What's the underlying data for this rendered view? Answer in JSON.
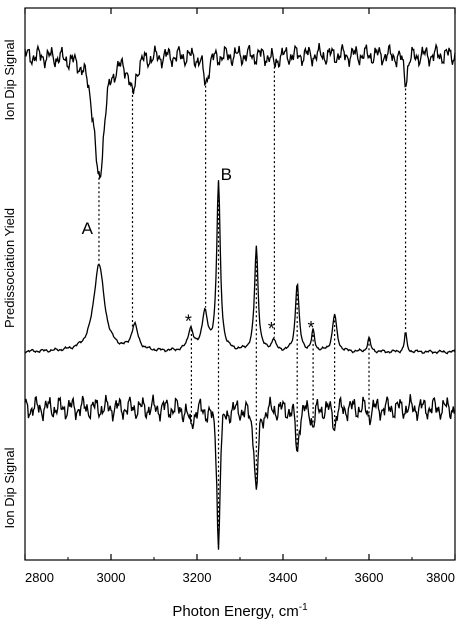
{
  "chart_data": {
    "type": "line",
    "xlabel": "Photon Energy, cm",
    "xlabel_superscript": "-1",
    "xlim": [
      2800,
      3800
    ],
    "xticks": [
      2800,
      3000,
      3200,
      3400,
      3600,
      3800
    ],
    "tick_labels": [
      "2800",
      "3000",
      "3200",
      "3400",
      "3600",
      "3800"
    ],
    "grid": false,
    "y_ticks_shown": false,
    "ylabels": [
      "Ion Dip Signal",
      "Predissociation Yield",
      "Ion Dip Signal"
    ],
    "series": [
      {
        "name": "Ion Dip Signal",
        "baseline": 0.0,
        "noise": 0.1,
        "peaks": [
          {
            "x": 2972,
            "h": -1.0,
            "w": 14
          },
          {
            "x": 3050,
            "h": -0.3,
            "w": 8
          },
          {
            "x": 3220,
            "h": -0.22,
            "w": 7
          },
          {
            "x": 3380,
            "h": -0.07,
            "w": 6
          },
          {
            "x": 3685,
            "h": -0.2,
            "w": 5
          }
        ]
      },
      {
        "name": "Predissociation Yield",
        "baseline": 0.0,
        "noise": 0.012,
        "peaks": [
          {
            "x": 2972,
            "h": 0.52,
            "w": 15
          },
          {
            "x": 3055,
            "h": 0.15,
            "w": 9
          },
          {
            "x": 3185,
            "h": 0.13,
            "w": 7
          },
          {
            "x": 3218,
            "h": 0.22,
            "w": 8
          },
          {
            "x": 3250,
            "h": 1.0,
            "w": 5
          },
          {
            "x": 3338,
            "h": 0.62,
            "w": 5
          },
          {
            "x": 3378,
            "h": 0.07,
            "w": 5
          },
          {
            "x": 3433,
            "h": 0.41,
            "w": 5
          },
          {
            "x": 3470,
            "h": 0.12,
            "w": 4
          },
          {
            "x": 3520,
            "h": 0.22,
            "w": 6
          },
          {
            "x": 3600,
            "h": 0.08,
            "w": 4
          },
          {
            "x": 3685,
            "h": 0.12,
            "w": 3
          }
        ]
      },
      {
        "name": "Ion Dip Signal",
        "baseline": 0.0,
        "noise": 0.1,
        "peaks": [
          {
            "x": 3185,
            "h": -0.12,
            "w": 6
          },
          {
            "x": 3250,
            "h": -1.0,
            "w": 4
          },
          {
            "x": 3338,
            "h": -0.62,
            "w": 5
          },
          {
            "x": 3433,
            "h": -0.32,
            "w": 4
          },
          {
            "x": 3470,
            "h": -0.12,
            "w": 4
          },
          {
            "x": 3520,
            "h": -0.12,
            "w": 4
          },
          {
            "x": 3600,
            "h": -0.05,
            "w": 4
          }
        ]
      }
    ],
    "dotted_correlations": [
      {
        "x": 2972,
        "from_series": 0,
        "to_series": 1
      },
      {
        "x": 3050,
        "from_series": 0,
        "to_series": 1
      },
      {
        "x": 3220,
        "from_series": 0,
        "to_series": 1
      },
      {
        "x": 3380,
        "from_series": 0,
        "to_series": 1
      },
      {
        "x": 3685,
        "from_series": 0,
        "to_series": 1
      },
      {
        "x": 3187,
        "from_series": 1,
        "to_series": 2
      },
      {
        "x": 3250,
        "from_series": 1,
        "to_series": 2
      },
      {
        "x": 3338,
        "from_series": 1,
        "to_series": 2
      },
      {
        "x": 3433,
        "from_series": 1,
        "to_series": 2
      },
      {
        "x": 3470,
        "from_series": 1,
        "to_series": 2
      },
      {
        "x": 3520,
        "from_series": 1,
        "to_series": 2
      },
      {
        "x": 3600,
        "from_series": 1,
        "to_series": 2
      }
    ],
    "annotations": [
      {
        "text": "A",
        "x": 2945
      },
      {
        "text": "B",
        "x": 3268
      },
      {
        "text": "*",
        "x": 3180
      },
      {
        "text": "*",
        "x": 3373
      },
      {
        "text": "*",
        "x": 3465
      }
    ]
  }
}
